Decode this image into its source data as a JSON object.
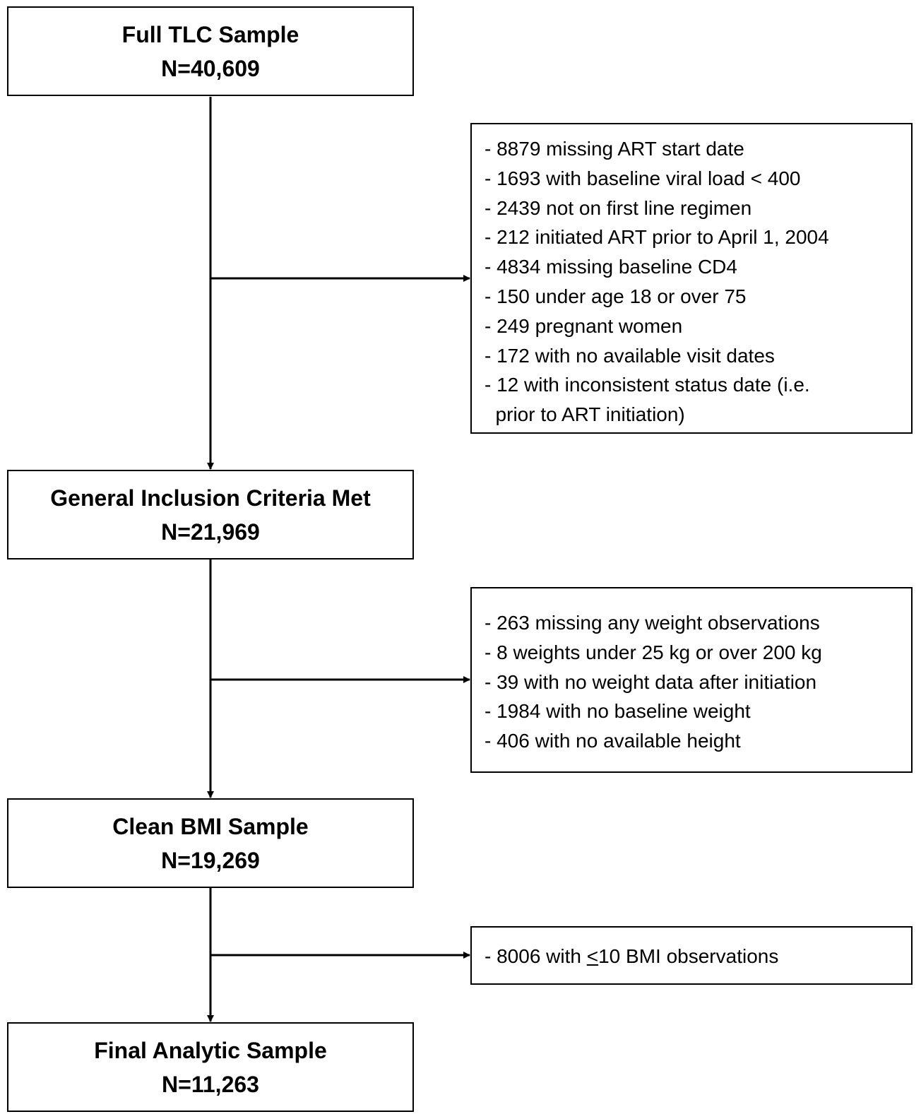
{
  "stages": [
    {
      "title": "Full TLC Sample",
      "n": "N=40,609"
    },
    {
      "title": "General Inclusion Criteria Met",
      "n": "N=21,969"
    },
    {
      "title": "Clean BMI Sample",
      "n": "N=19,269"
    },
    {
      "title": "Final Analytic Sample",
      "n": "N=11,263"
    }
  ],
  "exclusions": [
    {
      "items": [
        "- 8879 missing ART start date",
        "- 1693 with baseline viral load < 400",
        "- 2439 not on first line regimen",
        "- 212 initiated ART prior to April 1, 2004",
        "- 4834 missing baseline CD4",
        "- 150 under age 18 or over 75",
        "- 249 pregnant women",
        "- 172 with no available visit dates",
        "- 12 with inconsistent status date (i.e.",
        "  prior to ART initiation)"
      ]
    },
    {
      "items": [
        "- 263 missing any weight observations",
        "- 8 weights under 25 kg or over 200 kg",
        "- 39 with no weight data after initiation",
        "- 1984 with no baseline weight",
        "- 406 with no available height"
      ]
    },
    {
      "item_prefix": "- 8006 with ",
      "item_symbol": "<",
      "item_suffix": "10 BMI observations"
    }
  ]
}
